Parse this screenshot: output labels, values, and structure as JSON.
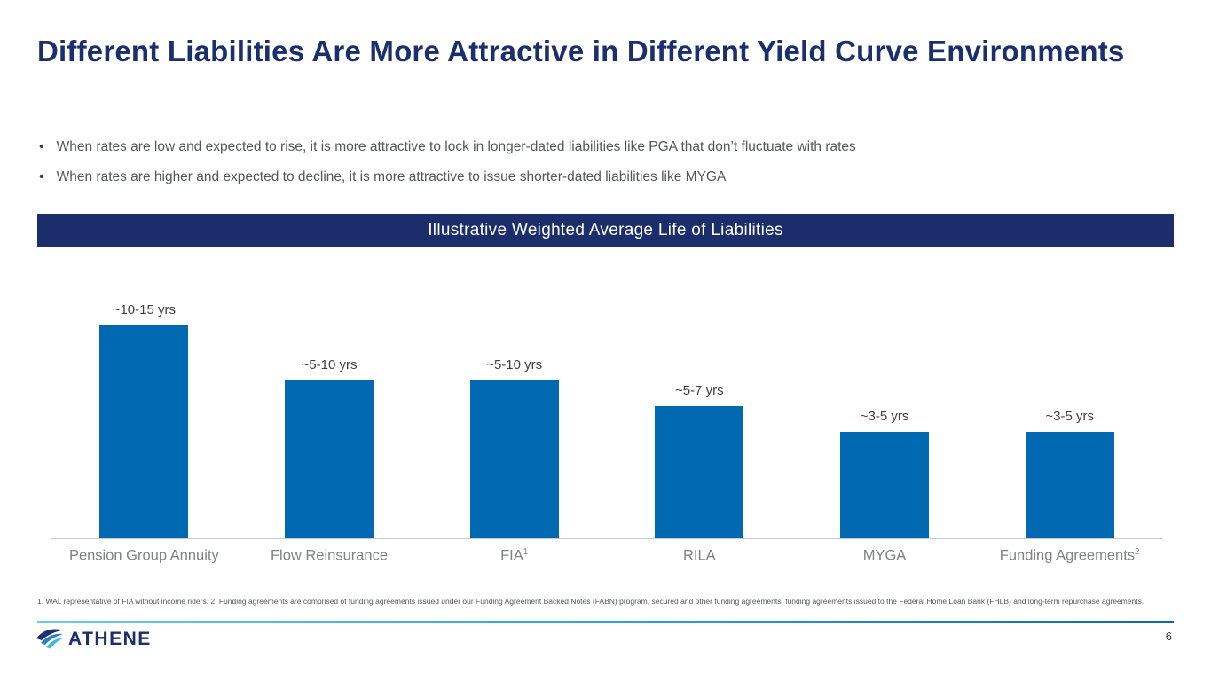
{
  "slide": {
    "title": "Different Liabilities Are More Attractive in Different Yield Curve Environments",
    "bullets": [
      "When rates are low and expected to rise, it is more attractive to lock in longer-dated liabilities like PGA that don’t fluctuate with rates",
      "When rates are higher and expected to decline, it is more attractive to issue shorter-dated liabilities like MYGA"
    ],
    "banner": "Illustrative Weighted Average Life of Liabilities",
    "footnote": "1. WAL representative of FIA without income riders. 2. Funding agreements are comprised of funding agreements issued under our Funding Agreement Backed Notes (FABN) program, secured and other funding agreements, funding agreements issued to the Federal Home Loan Bank (FHLB) and long-term repurchase agreements.",
    "brand": "ATHENE",
    "page_number": "6"
  },
  "colors": {
    "navy": "#1b2e6d",
    "bar_blue": "#0069b1",
    "text_gray": "#54565a",
    "category_gray": "#808285",
    "accent_light_blue": "#41b6e6"
  },
  "chart_data": {
    "type": "bar",
    "title": "Illustrative Weighted Average Life of Liabilities",
    "categories": [
      "Pension Group Annuity",
      "Flow Reinsurance",
      "FIA",
      "RILA",
      "MYGA",
      "Funding Agreements"
    ],
    "category_superscripts": [
      "",
      "",
      "1",
      "",
      "",
      "2"
    ],
    "value_labels": [
      "~10-15 yrs",
      "~5-10 yrs",
      "~5-10 yrs",
      "~5-7 yrs",
      "~3-5 yrs",
      "~3-5 yrs"
    ],
    "values_years_mid": [
      12.5,
      7.5,
      7.5,
      6,
      4,
      4
    ],
    "bar_heights_rel": [
      1.0,
      0.74,
      0.74,
      0.62,
      0.5,
      0.5
    ],
    "units": "years",
    "xlabel": "",
    "ylabel": "",
    "grid": false,
    "legend": false,
    "axis": "baseline-only"
  }
}
